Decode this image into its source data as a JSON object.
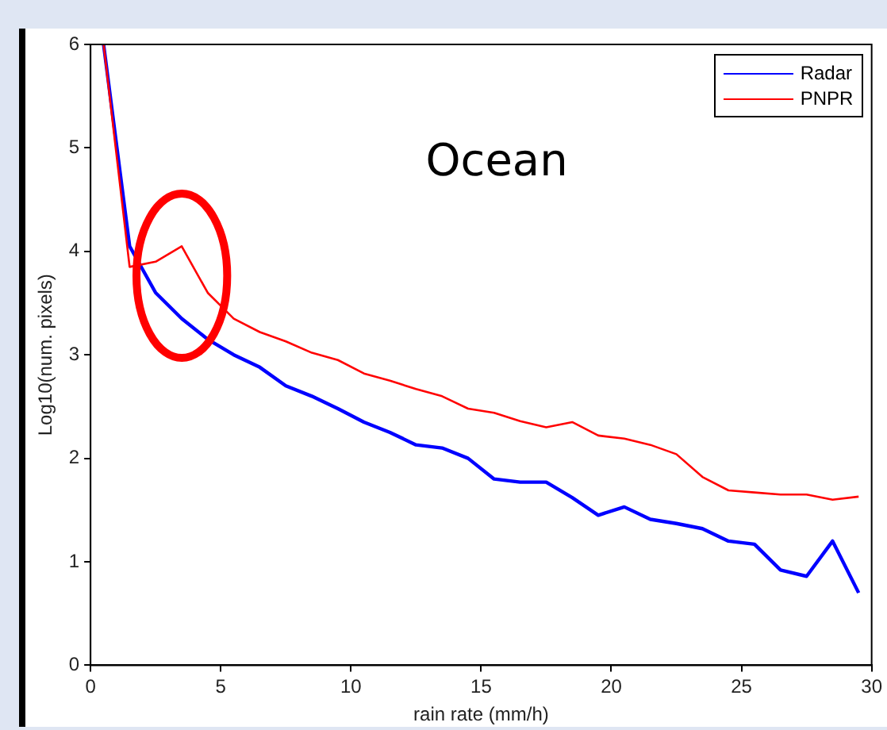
{
  "chart_data": {
    "type": "line",
    "xlabel": "rain rate (mm/h)",
    "ylabel": "Log10(num. pixels)",
    "annotations": [
      "Ocean"
    ],
    "x": [
      0.5,
      1.5,
      2.5,
      3.5,
      4.5,
      5.5,
      6.5,
      7.5,
      8.5,
      9.5,
      10.5,
      11.5,
      12.5,
      13.5,
      14.5,
      15.5,
      16.5,
      17.5,
      18.5,
      19.5,
      20.5,
      21.5,
      22.5,
      23.5,
      24.5,
      25.5,
      26.5,
      27.5,
      28.5,
      29.5
    ],
    "series": [
      {
        "name": "Radar",
        "color": "#0000ff",
        "values": [
          6.0,
          4.05,
          3.6,
          3.35,
          3.15,
          3.0,
          2.88,
          2.7,
          2.6,
          2.48,
          2.35,
          2.25,
          2.13,
          2.1,
          2.0,
          1.8,
          1.77,
          1.77,
          1.62,
          1.45,
          1.53,
          1.41,
          1.37,
          1.32,
          1.2,
          1.17,
          0.92,
          0.86,
          1.2,
          0.7
        ]
      },
      {
        "name": "PNPR",
        "color": "#ff0000",
        "values": [
          6.0,
          3.85,
          3.9,
          4.05,
          3.6,
          3.35,
          3.22,
          3.13,
          3.02,
          2.95,
          2.82,
          2.75,
          2.67,
          2.6,
          2.48,
          2.44,
          2.36,
          2.3,
          2.35,
          2.22,
          2.19,
          2.13,
          2.04,
          1.82,
          1.69,
          1.67,
          1.65,
          1.65,
          1.6,
          1.63
        ]
      }
    ],
    "xlim": [
      0,
      30
    ],
    "xticks": [
      0,
      5,
      10,
      15,
      20,
      25,
      30
    ],
    "ylim": [
      0,
      6
    ],
    "yticks": [
      0,
      1,
      2,
      3,
      4,
      5,
      6
    ],
    "grid": false,
    "legend": "top right",
    "marker": "none",
    "line_style": "solid"
  }
}
